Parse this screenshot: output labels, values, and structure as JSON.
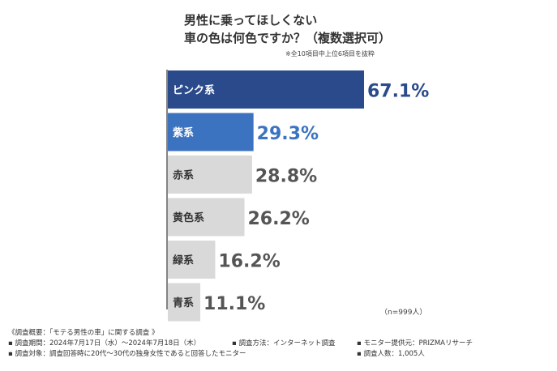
{
  "title_line1": "男性に乗ってほしくない",
  "title_line2": "車の色は何色ですか？（複数選択可）",
  "note": "※全10項目中上位6項目を抜粋",
  "sample_size": "（n=999人）",
  "chart_data": {
    "type": "bar",
    "orientation": "horizontal",
    "categories": [
      "ピンク系",
      "紫系",
      "赤系",
      "黄色系",
      "緑系",
      "青系"
    ],
    "values": [
      67.1,
      29.3,
      28.8,
      26.2,
      16.2,
      11.1
    ],
    "value_labels": [
      "67.1%",
      "29.3%",
      "28.8%",
      "26.2%",
      "16.2%",
      "11.1%"
    ],
    "unit": "%",
    "xlim": [
      0,
      67.1
    ],
    "grid": false,
    "legend": "none",
    "colors": {
      "top1_bar": "#2a4a8c",
      "top2_bar": "#3c73c0",
      "other_bar": "#d9d9d9",
      "top1_value": "#2a4a8c",
      "top2_value": "#3c73c0",
      "other_value": "#555555",
      "light_label": "#ffffff",
      "dark_label": "#333333",
      "axis": "#333333"
    }
  },
  "footer": {
    "heading": "《調査概要：「モテる男性の車」に関する調査 》",
    "period": "▪ 調査期間：2024年7月17日（水）〜2024年7月18日（木）",
    "method": "▪ 調査方法：インターネット調査",
    "provider": "▪ モニター提供元：PRIZMAリサーチ",
    "target": "▪ 調査対象：調査回答時に20代〜30代の独身女性であると回答したモニター",
    "respondents": "▪ 調査人数：1,005人"
  }
}
